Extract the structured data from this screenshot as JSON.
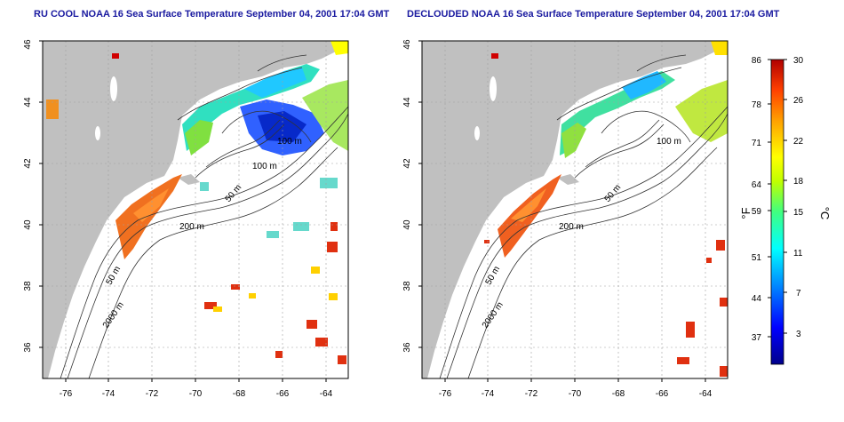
{
  "panels": [
    {
      "title": "RU COOL NOAA 16 Sea Surface Temperature September 04, 2001 17:04 GMT",
      "x_ticks": [
        "-76",
        "-74",
        "-72",
        "-70",
        "-68",
        "-66",
        "-64"
      ],
      "y_ticks": [
        "36",
        "38",
        "40",
        "42",
        "44",
        "46"
      ],
      "contour_labels": [
        "100 m",
        "100 m",
        "50 m",
        "200 m",
        "50 m",
        "2000 m"
      ]
    },
    {
      "title": "DECLOUDED NOAA 16 Sea Surface Temperature September 04, 2001 17:04 GMT",
      "x_ticks": [
        "-76",
        "-74",
        "-72",
        "-70",
        "-68",
        "-66",
        "-64"
      ],
      "y_ticks": [
        "36",
        "38",
        "40",
        "42",
        "44",
        "46"
      ],
      "contour_labels": [
        "100 m",
        "50 m",
        "200 m",
        "50 m",
        "2000 m"
      ]
    }
  ],
  "colorbar": {
    "fahrenheit_ticks": [
      "86",
      "78",
      "71",
      "64",
      "59",
      "51",
      "44",
      "37"
    ],
    "celsius_ticks": [
      "30",
      "26",
      "22",
      "18",
      "15",
      "11",
      "7",
      "3"
    ],
    "unit_f": "°F",
    "unit_c": "°C",
    "colors": [
      "#00008b",
      "#0000ff",
      "#0080ff",
      "#00ffff",
      "#40ff80",
      "#c0ff00",
      "#ffff00",
      "#ffa000",
      "#ff4000",
      "#b00000"
    ]
  },
  "colors": {
    "land": "#c0c0c0",
    "title": "#1a1aa0",
    "grid": "#a0a0a0"
  }
}
